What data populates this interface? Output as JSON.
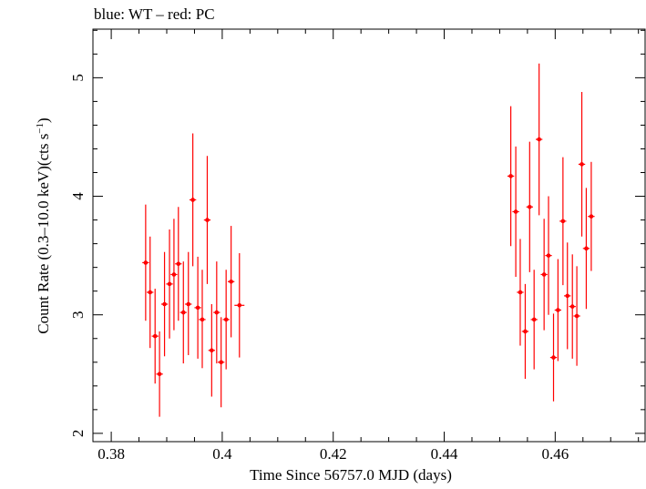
{
  "title": "blue: WT – red: PC",
  "chart_data": {
    "type": "scatter",
    "title": "blue: WT – red: PC",
    "xlabel": "Time Since 56757.0 MJD (days)",
    "ylabel_main": "Count Rate (0.3–10.0 keV)(cts s",
    "ylabel_sup": "−1",
    "ylabel_close": ")",
    "xlim": [
      0.3767,
      0.4762
    ],
    "ylim": [
      1.93,
      5.41
    ],
    "x_ticks": [
      0.38,
      0.4,
      0.42,
      0.44,
      0.46
    ],
    "x_tick_labels": [
      "0.38",
      "0.4",
      "0.42",
      "0.44",
      "0.46"
    ],
    "x_minor_step": 0.005,
    "y_ticks": [
      2,
      3,
      4,
      5
    ],
    "y_tick_labels": [
      "2",
      "3",
      "4",
      "5"
    ],
    "y_minor_step": 0.2,
    "grid": false,
    "series": [
      {
        "color": "#ff0000",
        "x_err": 0.0006,
        "points": [
          {
            "x": 0.3862,
            "y": 3.44,
            "ylo": 2.95,
            "yhi": 3.93
          },
          {
            "x": 0.387,
            "y": 3.19,
            "ylo": 2.72,
            "yhi": 3.66
          },
          {
            "x": 0.3879,
            "y": 2.82,
            "ylo": 2.42,
            "yhi": 3.22
          },
          {
            "x": 0.3887,
            "y": 2.5,
            "ylo": 2.14,
            "yhi": 2.86
          },
          {
            "x": 0.3896,
            "y": 3.09,
            "ylo": 2.65,
            "yhi": 3.53
          },
          {
            "x": 0.3905,
            "y": 3.26,
            "ylo": 2.8,
            "yhi": 3.72
          },
          {
            "x": 0.3913,
            "y": 3.34,
            "ylo": 2.87,
            "yhi": 3.81
          },
          {
            "x": 0.3921,
            "y": 3.43,
            "ylo": 2.95,
            "yhi": 3.91
          },
          {
            "x": 0.393,
            "y": 3.02,
            "ylo": 2.59,
            "yhi": 3.45
          },
          {
            "x": 0.3939,
            "y": 3.09,
            "ylo": 2.66,
            "yhi": 3.53
          },
          {
            "x": 0.3947,
            "y": 3.97,
            "ylo": 3.41,
            "yhi": 4.53
          },
          {
            "x": 0.3956,
            "y": 3.06,
            "ylo": 2.63,
            "yhi": 3.49
          },
          {
            "x": 0.3964,
            "y": 2.96,
            "ylo": 2.55,
            "yhi": 3.38
          },
          {
            "x": 0.3973,
            "y": 3.8,
            "ylo": 3.26,
            "yhi": 4.34
          },
          {
            "x": 0.3981,
            "y": 2.7,
            "ylo": 2.31,
            "yhi": 3.09
          },
          {
            "x": 0.399,
            "y": 3.02,
            "ylo": 2.59,
            "yhi": 3.45
          },
          {
            "x": 0.3998,
            "y": 2.6,
            "ylo": 2.22,
            "yhi": 2.98
          },
          {
            "x": 0.4007,
            "y": 2.96,
            "ylo": 2.54,
            "yhi": 3.38
          },
          {
            "x": 0.4016,
            "y": 3.28,
            "ylo": 2.81,
            "yhi": 3.75
          },
          {
            "x": 0.4031,
            "y": 3.08,
            "ylo": 2.64,
            "yhi": 3.52,
            "x_err": 0.0009
          },
          {
            "x": 0.452,
            "y": 4.17,
            "ylo": 3.58,
            "yhi": 4.76
          },
          {
            "x": 0.4529,
            "y": 3.87,
            "ylo": 3.32,
            "yhi": 4.42
          },
          {
            "x": 0.4537,
            "y": 3.19,
            "ylo": 2.74,
            "yhi": 3.64
          },
          {
            "x": 0.4546,
            "y": 2.86,
            "ylo": 2.46,
            "yhi": 3.26
          },
          {
            "x": 0.4554,
            "y": 3.91,
            "ylo": 3.36,
            "yhi": 4.46
          },
          {
            "x": 0.4562,
            "y": 2.96,
            "ylo": 2.54,
            "yhi": 3.38
          },
          {
            "x": 0.4571,
            "y": 4.48,
            "ylo": 3.84,
            "yhi": 5.12
          },
          {
            "x": 0.458,
            "y": 3.34,
            "ylo": 2.87,
            "yhi": 3.81
          },
          {
            "x": 0.4588,
            "y": 3.5,
            "ylo": 3.0,
            "yhi": 4.0
          },
          {
            "x": 0.4597,
            "y": 2.64,
            "ylo": 2.27,
            "yhi": 3.01
          },
          {
            "x": 0.4605,
            "y": 3.04,
            "ylo": 2.61,
            "yhi": 3.47
          },
          {
            "x": 0.4614,
            "y": 3.79,
            "ylo": 3.25,
            "yhi": 4.33
          },
          {
            "x": 0.4622,
            "y": 3.16,
            "ylo": 2.71,
            "yhi": 3.61
          },
          {
            "x": 0.4631,
            "y": 3.07,
            "ylo": 2.63,
            "yhi": 3.51
          },
          {
            "x": 0.4639,
            "y": 2.99,
            "ylo": 2.57,
            "yhi": 3.41
          },
          {
            "x": 0.4648,
            "y": 4.27,
            "ylo": 3.66,
            "yhi": 4.88
          },
          {
            "x": 0.4656,
            "y": 3.56,
            "ylo": 3.05,
            "yhi": 4.07
          },
          {
            "x": 0.4665,
            "y": 3.83,
            "ylo": 3.37,
            "yhi": 4.29
          }
        ]
      }
    ]
  }
}
